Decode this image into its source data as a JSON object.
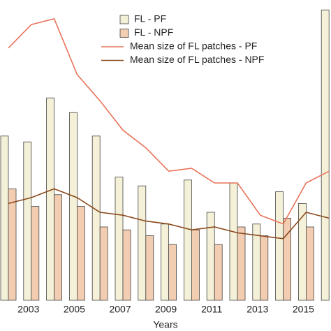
{
  "chart_data": {
    "type": "bar-line",
    "x_label": "Years",
    "categories": [
      null,
      "2003",
      null,
      "2005",
      null,
      "2007",
      null,
      "2009",
      null,
      "2011",
      null,
      "2013",
      null,
      "2015",
      null
    ],
    "ylim": [
      0,
      100
    ],
    "series": [
      {
        "name": "FL - PF",
        "kind": "bar",
        "color": "#f4f1d8",
        "values": [
          56,
          54,
          69,
          64,
          56,
          42,
          39,
          26,
          41,
          30,
          40,
          26,
          37,
          33,
          99
        ]
      },
      {
        "name": "FL - NPF",
        "kind": "bar",
        "color": "#f3cdb2",
        "values": [
          38,
          32,
          36,
          32,
          25,
          24,
          22,
          19,
          24,
          19,
          25,
          22,
          28,
          25,
          null
        ]
      },
      {
        "name": "Mean size of FL patches - PF",
        "kind": "line",
        "color": "#e8735a",
        "values": [
          86,
          94,
          96,
          77,
          68,
          58,
          52,
          44,
          45,
          40,
          40,
          29,
          26,
          40,
          44
        ]
      },
      {
        "name": "Mean size of FL patches - NPF",
        "kind": "line",
        "color": "#8b4a1e",
        "values": [
          33,
          35,
          38,
          35,
          30,
          29,
          27,
          26,
          24,
          25,
          23,
          22,
          21,
          30,
          28
        ]
      }
    ]
  }
}
